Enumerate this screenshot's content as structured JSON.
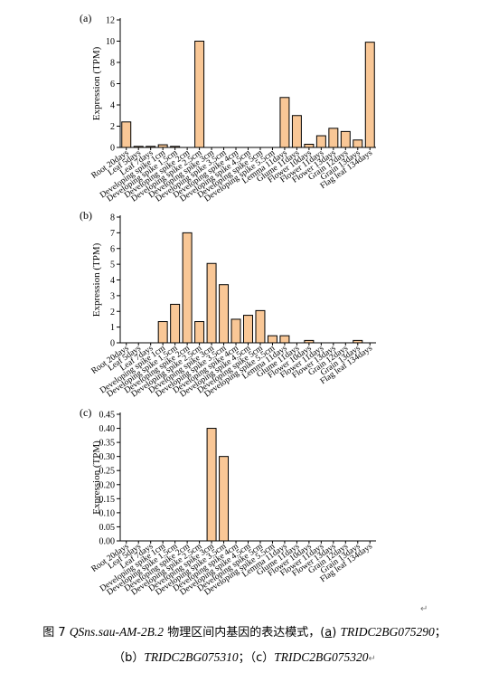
{
  "bar_color": "#f9c796",
  "chart_data": [
    {
      "type": "bar",
      "panel_label": "(a)",
      "title": "",
      "xlabel": "",
      "ylabel": "Expression (TPM)",
      "ylim": [
        0,
        12
      ],
      "yticks": [
        "0",
        "2",
        "4",
        "6",
        "8",
        "10",
        "12"
      ],
      "categories": [
        "Root 20days",
        "Leaf 5days",
        "Leaf 7days",
        "Developing spike 1cm",
        "Developing spike 1.5cm",
        "Developing spike 2cm",
        "Developing spike 2.5cm",
        "Developing spike 3cm",
        "Developing spike 3.5cm",
        "Developing spike 4cm",
        "Developing spike 4.5cm",
        "Developing spike 5cm",
        "Developing spike 5.5cm",
        "Lemma 11days",
        "Glume 11days",
        "Flower 10days",
        "Flower 11days",
        "Flower 13days",
        "Grain 12days",
        "Grain 13days",
        "Flag leaf 134days"
      ],
      "values": [
        2.4,
        0.1,
        0.1,
        0.25,
        0.1,
        0.0,
        10.0,
        0.0,
        0.0,
        0.0,
        0.0,
        0.0,
        0.0,
        4.7,
        3.0,
        0.3,
        1.1,
        1.8,
        1.5,
        0.7,
        9.9
      ],
      "grid": false
    },
    {
      "type": "bar",
      "panel_label": "(b)",
      "title": "",
      "xlabel": "",
      "ylabel": "Expression (TPM)",
      "ylim": [
        0,
        8
      ],
      "yticks": [
        "0",
        "1",
        "2",
        "3",
        "4",
        "5",
        "6",
        "7",
        "8"
      ],
      "categories": [
        "Root 20days",
        "Leaf 5days",
        "Leaf 7days",
        "Developing spike 1cm",
        "Developing spike 1.5cm",
        "Developing spike 2cm",
        "Developing spike 2.5cm",
        "Developing spike 3cm",
        "Developing spike 3.5cm",
        "Developing spike 4cm",
        "Developing spike 4.5cm",
        "Developing spike 5cm",
        "Developing spike 5.5cm",
        "Lemma 11days",
        "Glume 11days",
        "Flower 10days",
        "Flower 11days",
        "Flower 13days",
        "Grain 12days",
        "Grain 13days",
        "Flag leaf 134days"
      ],
      "values": [
        0.0,
        0.0,
        0.0,
        1.35,
        2.45,
        7.0,
        1.35,
        5.05,
        3.7,
        1.5,
        1.75,
        2.05,
        0.45,
        0.45,
        0.0,
        0.15,
        0.0,
        0.0,
        0.0,
        0.15,
        0.0
      ],
      "grid": false
    },
    {
      "type": "bar",
      "panel_label": "(c)",
      "title": "",
      "xlabel": "",
      "ylabel": "Expression (TPM)",
      "ylim": [
        0,
        0.45
      ],
      "yticks": [
        "0.00",
        "0.05",
        "0.10",
        "0.15",
        "0.20",
        "0.25",
        "0.30",
        "0.35",
        "0.40",
        "0.45"
      ],
      "categories": [
        "Root 20days",
        "Leaf 5days",
        "Leaf 7days",
        "Developing spike 1cm",
        "Developing spike 1.5cm",
        "Developing spike 2cm",
        "Developing spike 2.5cm",
        "Developing spike 3cm",
        "Developing spike 3.5cm",
        "Developing spike 4cm",
        "Developing spike 4.5cm",
        "Developing spike 5cm",
        "Developing spike 5.5cm",
        "Lemma 11days",
        "Glume 11days",
        "Flower 10days",
        "Flower 11days",
        "Flower 13days",
        "Grain 12days",
        "Grain 13days",
        "Flag leaf 134days"
      ],
      "values": [
        0,
        0,
        0,
        0,
        0,
        0,
        0,
        0.4,
        0.3,
        0,
        0,
        0,
        0,
        0,
        0,
        0,
        0,
        0,
        0,
        0,
        0
      ],
      "grid": false
    }
  ],
  "caption": {
    "fig_prefix": "图 7 ",
    "gene_name": "QSns.sau-AM-2B.2",
    "desc": " 物理区间内基因的表达模式，(",
    "a_label": "a",
    "a_close": ") ",
    "gene_a": "TRIDC2BG075290",
    "sep1": "；",
    "b_label": "（b）",
    "gene_b": "TRIDC2BG075310",
    "sep2": "；",
    "c_label": "（c）",
    "gene_c": "TRIDC2BG075320"
  },
  "marks": {
    "return_mark": "↵"
  }
}
